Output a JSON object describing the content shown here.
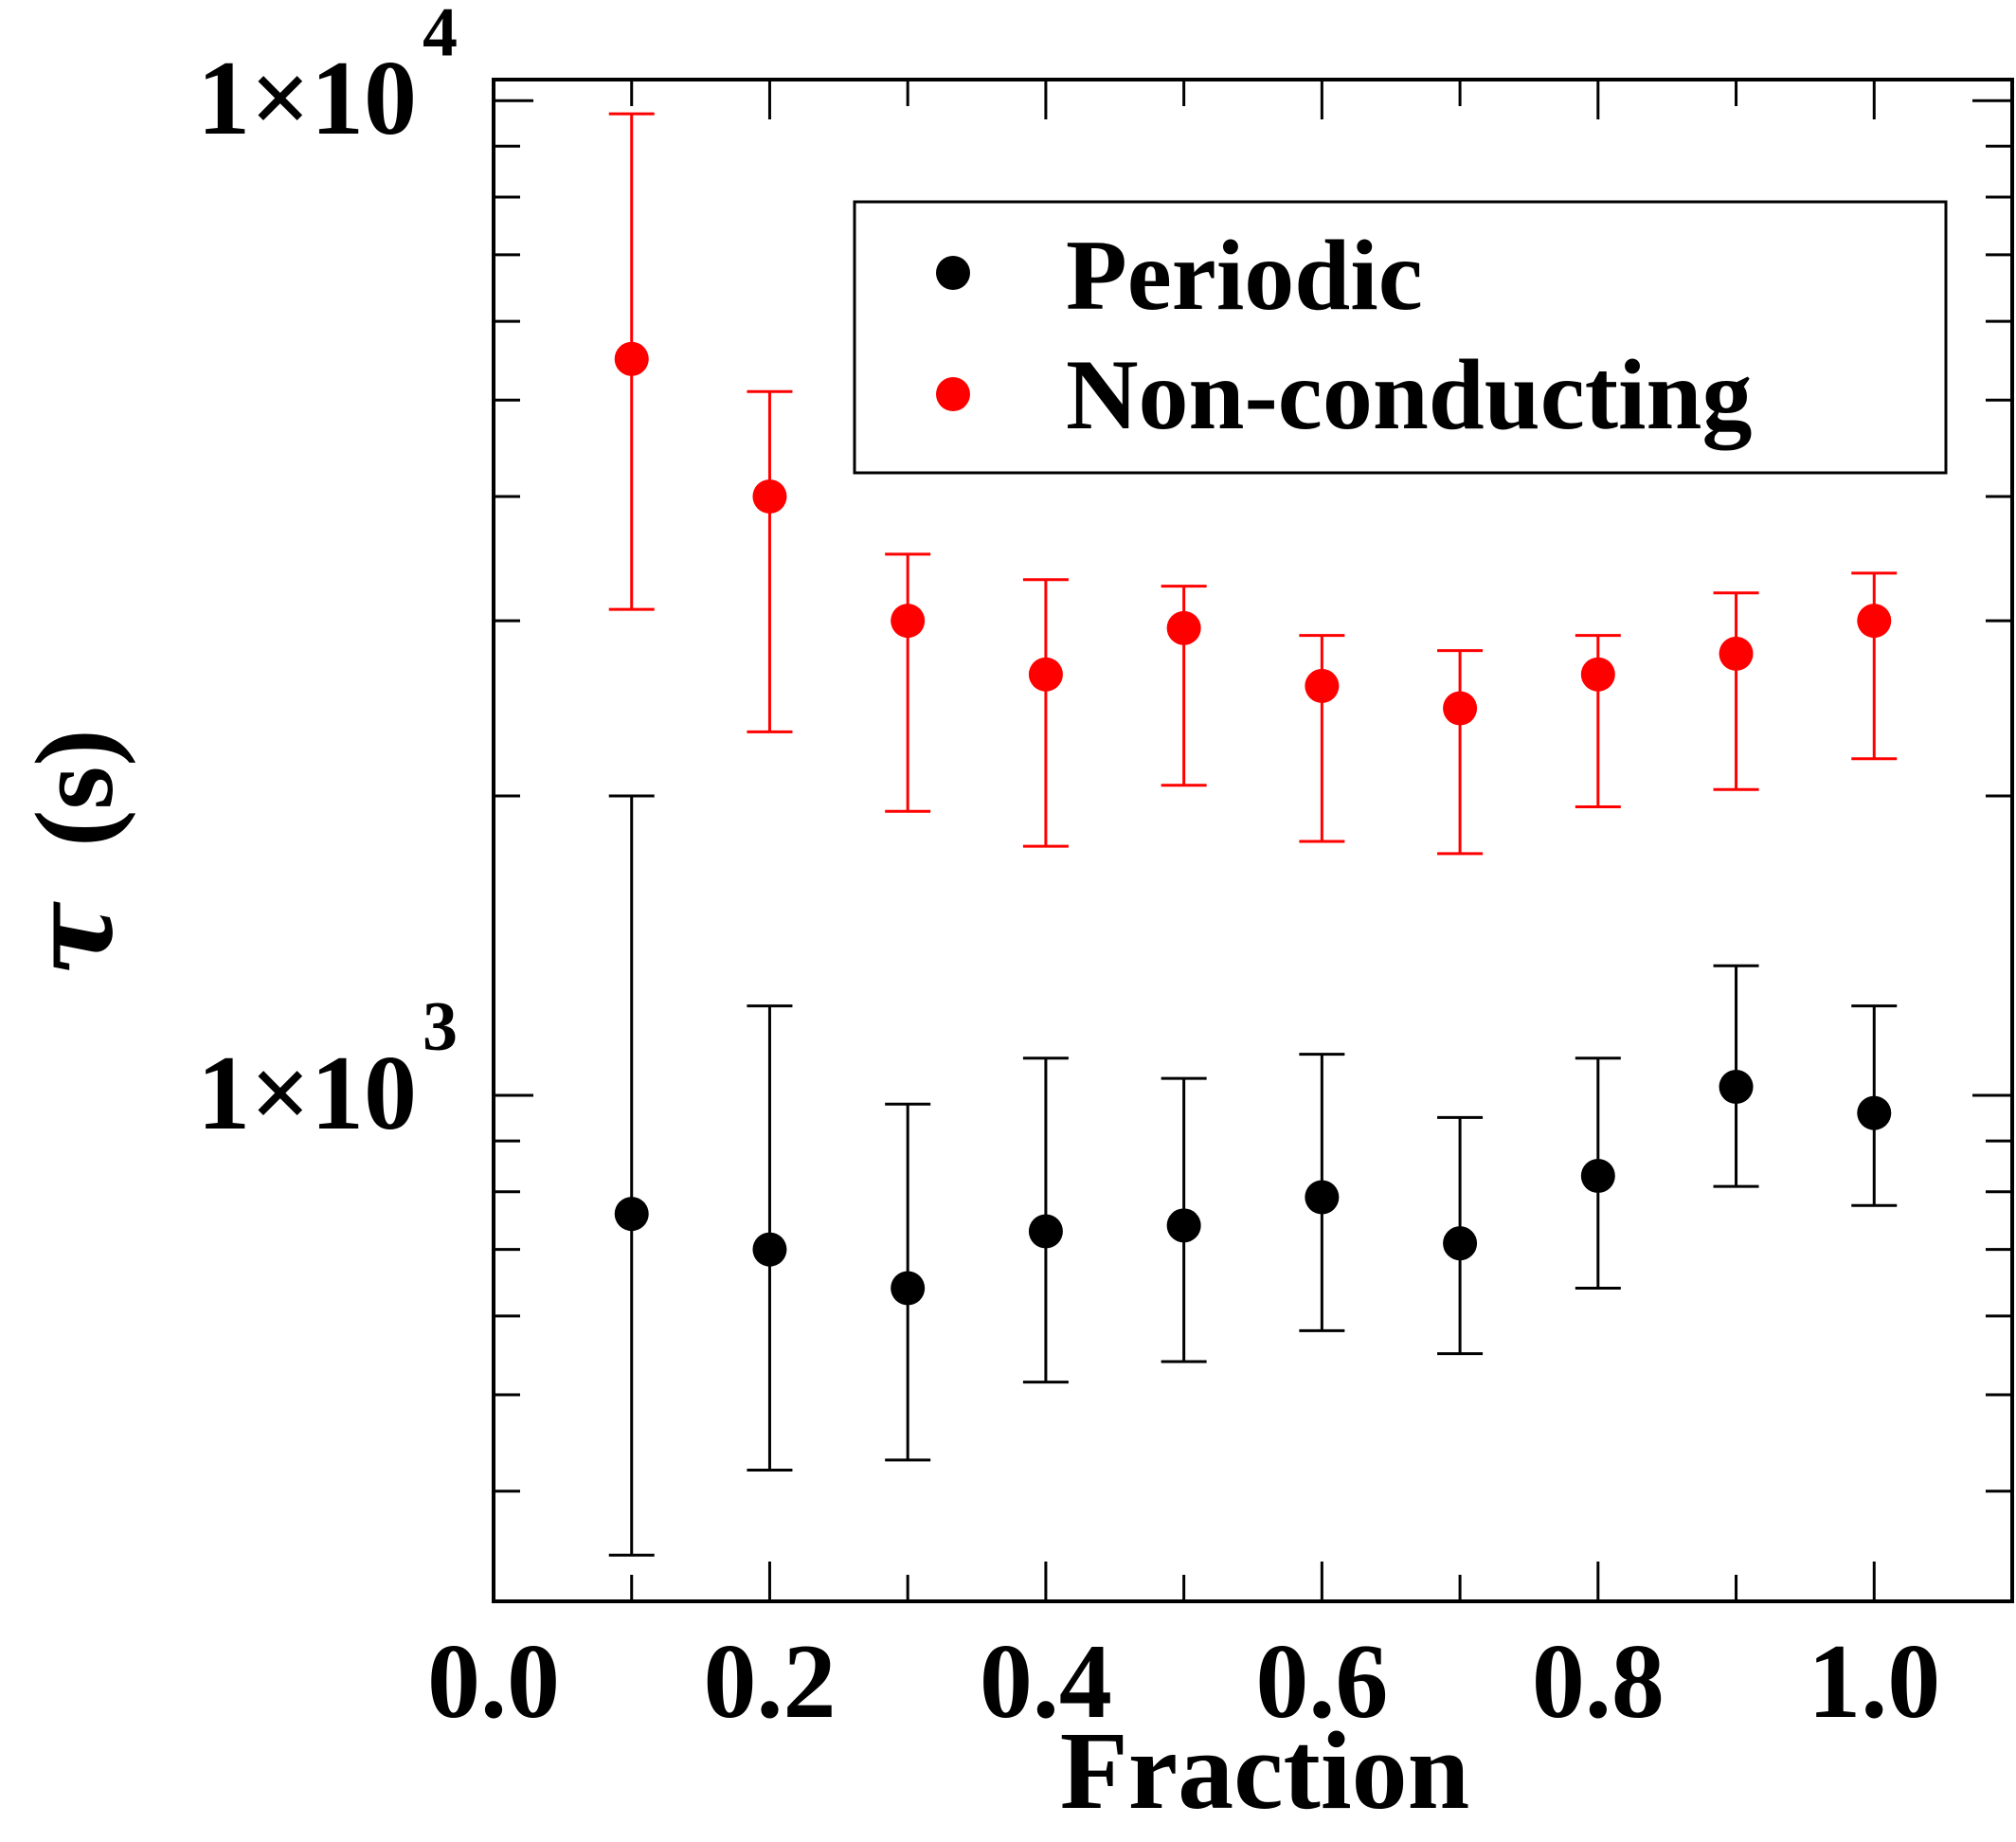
{
  "chart_data": {
    "type": "scatter",
    "title": "",
    "xlabel": "Fraction",
    "ylabel_symbol": "τ",
    "ylabel_unit": "(s)",
    "xlim": [
      0.0,
      1.1
    ],
    "ylim": [
      310,
      10500
    ],
    "yscale": "log",
    "x_ticks": [
      {
        "value": 0.0,
        "label": "0.0"
      },
      {
        "value": 0.2,
        "label": "0.2"
      },
      {
        "value": 0.4,
        "label": "0.4"
      },
      {
        "value": 0.6,
        "label": "0.6"
      },
      {
        "value": 0.8,
        "label": "0.8"
      },
      {
        "value": 1.0,
        "label": "1.0"
      }
    ],
    "x_minor_ticks": [
      0.1,
      0.3,
      0.5,
      0.7,
      0.9
    ],
    "y_major_ticks": [
      {
        "value": 1000,
        "mantissa": "1×10",
        "exponent": "3"
      },
      {
        "value": 10000,
        "mantissa": "1×10",
        "exponent": "4"
      }
    ],
    "y_minor_ticks": [
      400,
      500,
      600,
      700,
      800,
      900,
      2000,
      3000,
      4000,
      5000,
      6000,
      7000,
      8000,
      9000
    ],
    "legend": {
      "position": "top-right"
    },
    "series": [
      {
        "name": "Periodic",
        "color": "#000000",
        "x": [
          0.1,
          0.2,
          0.3,
          0.4,
          0.5,
          0.6,
          0.7,
          0.8,
          0.9,
          1.0
        ],
        "y": [
          760,
          700,
          640,
          730,
          740,
          790,
          710,
          830,
          1020,
          960
        ],
        "y_upper": [
          2000,
          1230,
          980,
          1090,
          1040,
          1100,
          950,
          1090,
          1350,
          1230
        ],
        "y_lower": [
          345,
          420,
          430,
          515,
          540,
          580,
          550,
          640,
          810,
          775
        ]
      },
      {
        "name": "Non-conducting",
        "color": "#ff0000",
        "x": [
          0.1,
          0.2,
          0.3,
          0.4,
          0.5,
          0.6,
          0.7,
          0.8,
          0.9,
          1.0
        ],
        "y": [
          5500,
          4000,
          3000,
          2650,
          2950,
          2580,
          2450,
          2650,
          2780,
          3000
        ],
        "y_upper": [
          9700,
          5100,
          3500,
          3300,
          3250,
          2900,
          2800,
          2900,
          3200,
          3350
        ],
        "y_lower": [
          3080,
          2320,
          1930,
          1780,
          2050,
          1800,
          1750,
          1950,
          2030,
          2180
        ]
      }
    ]
  }
}
